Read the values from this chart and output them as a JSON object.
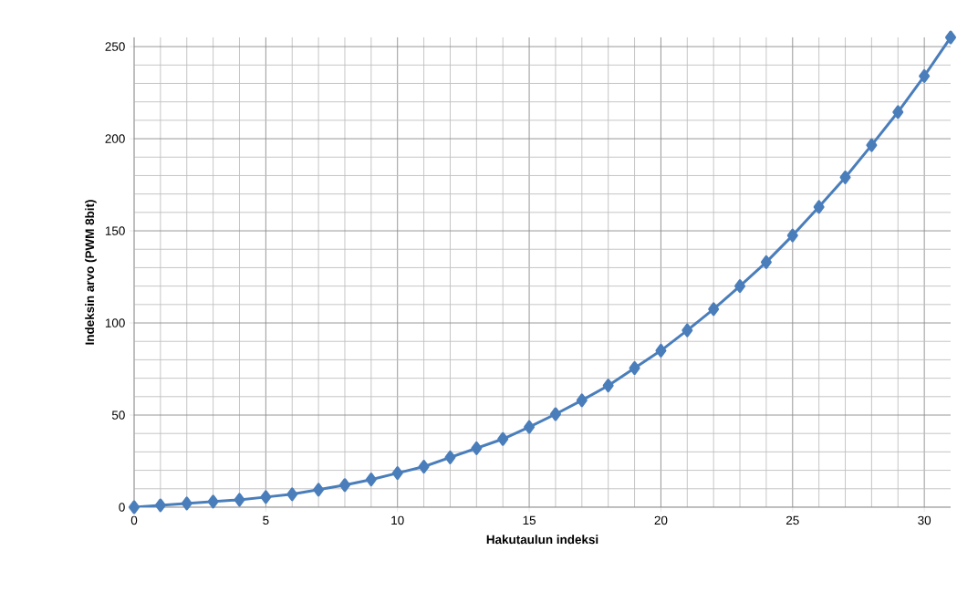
{
  "chart_data": {
    "type": "line",
    "xlabel": "Hakutaulun indeksi",
    "ylabel": "Indeksin arvo (PWM 8bit)",
    "x": [
      0,
      1,
      2,
      3,
      4,
      5,
      6,
      7,
      8,
      9,
      10,
      11,
      12,
      13,
      14,
      15,
      16,
      17,
      18,
      19,
      20,
      21,
      22,
      23,
      24,
      25,
      26,
      27,
      28,
      29,
      30,
      31
    ],
    "series": [
      {
        "color": "#4a7ebb",
        "values": [
          0,
          1,
          2,
          3,
          4,
          5.5,
          7,
          9.5,
          12,
          15,
          18.5,
          22,
          27,
          32,
          37,
          43.5,
          50.5,
          58,
          66,
          75.5,
          85,
          96,
          107.5,
          120,
          133,
          147.5,
          163,
          179,
          196.5,
          214.5,
          234,
          255
        ]
      }
    ],
    "xlim": [
      0,
      31
    ],
    "ylim": [
      0,
      255
    ],
    "xticks": [
      0,
      5,
      10,
      15,
      20,
      25,
      30
    ],
    "yticks": [
      0,
      50,
      100,
      150,
      200,
      250
    ],
    "grid": true,
    "marker": "diamond",
    "line_style": "solid"
  }
}
